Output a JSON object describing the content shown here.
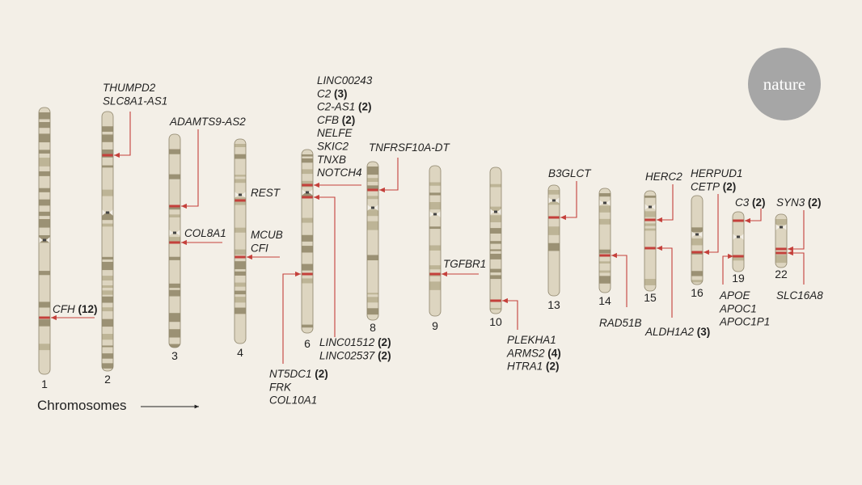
{
  "logo": {
    "text": "nature",
    "color": "#a6a6a6"
  },
  "axis": {
    "label": "Chromosomes"
  },
  "colors": {
    "background": "#f3efe7",
    "chromosome_light": "#ddd5c0",
    "chromosome_dark": "#9b9174",
    "chromosome_mid": "#bdb496",
    "highlight": "#c4403b",
    "arrow": "#c4403b",
    "text": "#222222"
  },
  "chromosomes": [
    {
      "id": "1",
      "label": "1"
    },
    {
      "id": "2",
      "label": "2"
    },
    {
      "id": "3",
      "label": "3"
    },
    {
      "id": "4",
      "label": "4"
    },
    {
      "id": "6",
      "label": "6"
    },
    {
      "id": "8",
      "label": "8"
    },
    {
      "id": "9",
      "label": "9"
    },
    {
      "id": "10",
      "label": "10"
    },
    {
      "id": "13",
      "label": "13"
    },
    {
      "id": "14",
      "label": "14"
    },
    {
      "id": "15",
      "label": "15"
    },
    {
      "id": "16",
      "label": "16"
    },
    {
      "id": "19",
      "label": "19"
    },
    {
      "id": "22",
      "label": "22"
    }
  ],
  "gene_groups": [
    {
      "chromosome": "1",
      "genes": [
        {
          "name": "CFH",
          "count": "(12)"
        }
      ]
    },
    {
      "chromosome": "2",
      "genes": [
        {
          "name": "THUMPD2",
          "count": ""
        },
        {
          "name": "SLC8A1-AS1",
          "count": ""
        }
      ]
    },
    {
      "chromosome": "3",
      "genes": [
        {
          "name": "ADAMTS9-AS2",
          "count": ""
        }
      ]
    },
    {
      "chromosome": "3",
      "genes": [
        {
          "name": "COL8A1",
          "count": ""
        }
      ]
    },
    {
      "chromosome": "4",
      "genes": [
        {
          "name": "REST",
          "count": ""
        }
      ]
    },
    {
      "chromosome": "4",
      "genes": [
        {
          "name": "MCUB",
          "count": ""
        },
        {
          "name": "CFI",
          "count": ""
        }
      ]
    },
    {
      "chromosome": "6",
      "genes": [
        {
          "name": "LINC00243",
          "count": ""
        },
        {
          "name": "C2",
          "count": "(3)"
        },
        {
          "name": "C2-AS1",
          "count": "(2)"
        },
        {
          "name": "CFB",
          "count": "(2)"
        },
        {
          "name": "NELFE",
          "count": ""
        },
        {
          "name": "SKIC2",
          "count": ""
        },
        {
          "name": "TNXB",
          "count": ""
        },
        {
          "name": "NOTCH4",
          "count": ""
        }
      ]
    },
    {
      "chromosome": "6",
      "genes": [
        {
          "name": "LINC01512",
          "count": "(2)"
        },
        {
          "name": "LINC02537",
          "count": "(2)"
        }
      ]
    },
    {
      "chromosome": "6",
      "genes": [
        {
          "name": "NT5DC1",
          "count": "(2)"
        },
        {
          "name": "FRK",
          "count": ""
        },
        {
          "name": "COL10A1",
          "count": ""
        }
      ]
    },
    {
      "chromosome": "8",
      "genes": [
        {
          "name": "TNFRSF10A-DT",
          "count": ""
        }
      ]
    },
    {
      "chromosome": "9",
      "genes": [
        {
          "name": "TGFBR1",
          "count": ""
        }
      ]
    },
    {
      "chromosome": "10",
      "genes": [
        {
          "name": "PLEKHA1",
          "count": ""
        },
        {
          "name": "ARMS2",
          "count": "(4)"
        },
        {
          "name": "HTRA1",
          "count": "(2)"
        }
      ]
    },
    {
      "chromosome": "13",
      "genes": [
        {
          "name": "B3GLCT",
          "count": ""
        }
      ]
    },
    {
      "chromosome": "14",
      "genes": [
        {
          "name": "RAD51B",
          "count": ""
        }
      ]
    },
    {
      "chromosome": "15",
      "genes": [
        {
          "name": "HERC2",
          "count": ""
        }
      ]
    },
    {
      "chromosome": "15",
      "genes": [
        {
          "name": "ALDH1A2",
          "count": "(3)"
        }
      ]
    },
    {
      "chromosome": "16",
      "genes": [
        {
          "name": "HERPUD1",
          "count": ""
        },
        {
          "name": "CETP",
          "count": "(2)"
        }
      ]
    },
    {
      "chromosome": "19",
      "genes": [
        {
          "name": "C3",
          "count": "(2)"
        }
      ]
    },
    {
      "chromosome": "19",
      "genes": [
        {
          "name": "APOE",
          "count": ""
        },
        {
          "name": "APOC1",
          "count": ""
        },
        {
          "name": "APOC1P1",
          "count": ""
        }
      ]
    },
    {
      "chromosome": "22",
      "genes": [
        {
          "name": "SYN3",
          "count": "(2)"
        }
      ]
    },
    {
      "chromosome": "22",
      "genes": [
        {
          "name": "SLC16A8",
          "count": ""
        }
      ]
    }
  ]
}
